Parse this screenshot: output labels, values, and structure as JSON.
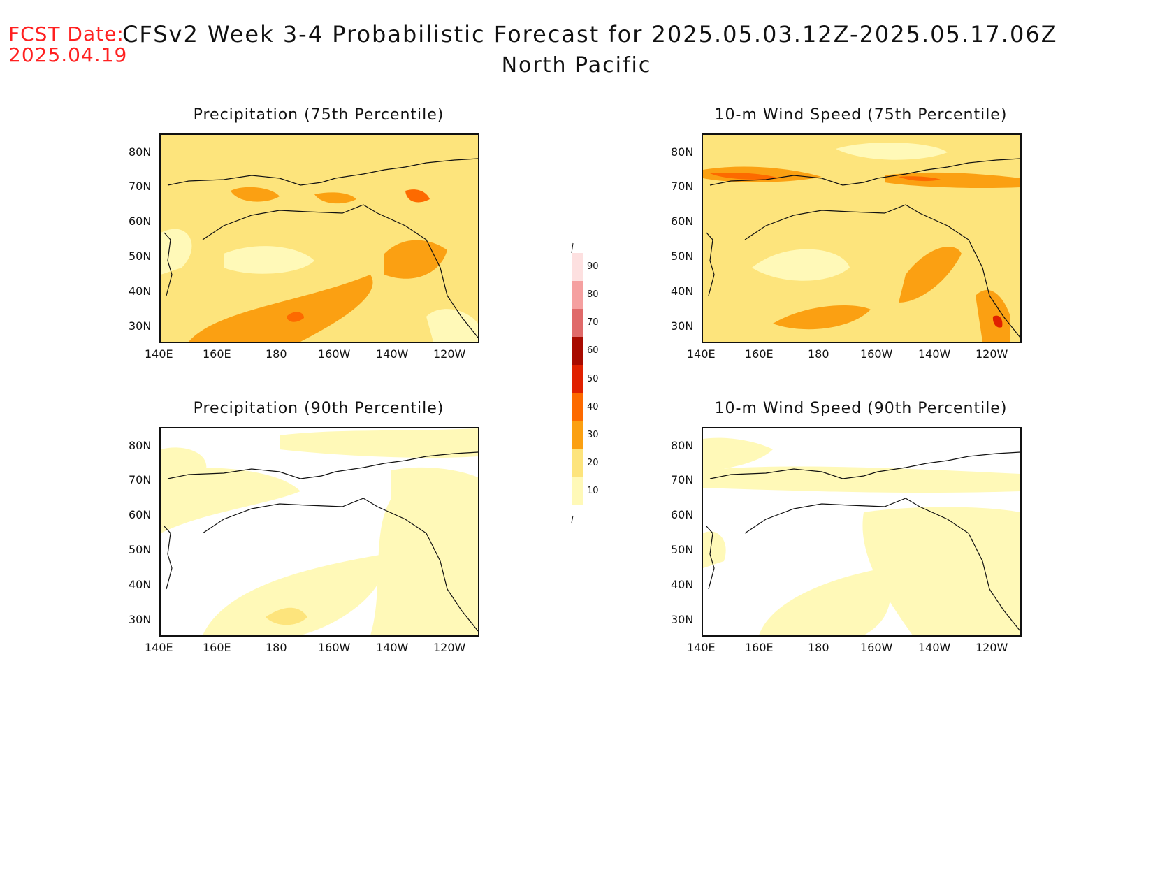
{
  "header": {
    "fcst_date_label": "FCST Date:",
    "fcst_date_value": "2025.04.19",
    "title": "CFSv2 Week 3-4 Probabilistic Forecast for 2025.05.03.12Z-2025.05.17.06Z",
    "region": "North Pacific"
  },
  "axes": {
    "lat_labels": [
      "80N",
      "70N",
      "60N",
      "50N",
      "40N",
      "30N"
    ],
    "lon_labels": [
      "140E",
      "160E",
      "180",
      "160W",
      "140W",
      "120W"
    ]
  },
  "panels": [
    {
      "title": "Precipitation (75th Percentile)",
      "dominant_category": "20-30"
    },
    {
      "title": "10-m Wind Speed (75th Percentile)",
      "dominant_category": "20-30"
    },
    {
      "title": "Precipitation (90th Percentile)",
      "dominant_category": "10-20"
    },
    {
      "title": "10-m Wind Speed (90th Percentile)",
      "dominant_category": "10-20"
    }
  ],
  "colorbar": {
    "levels": [
      "10",
      "20",
      "30",
      "40",
      "50",
      "60",
      "70",
      "80",
      "90"
    ],
    "colors": [
      "#fff9b8",
      "#fde47c",
      "#fba012",
      "#fd6a00",
      "#e02000",
      "#a80a00",
      "#e06a6a",
      "#f5a0a0",
      "#fde0e0"
    ]
  }
}
